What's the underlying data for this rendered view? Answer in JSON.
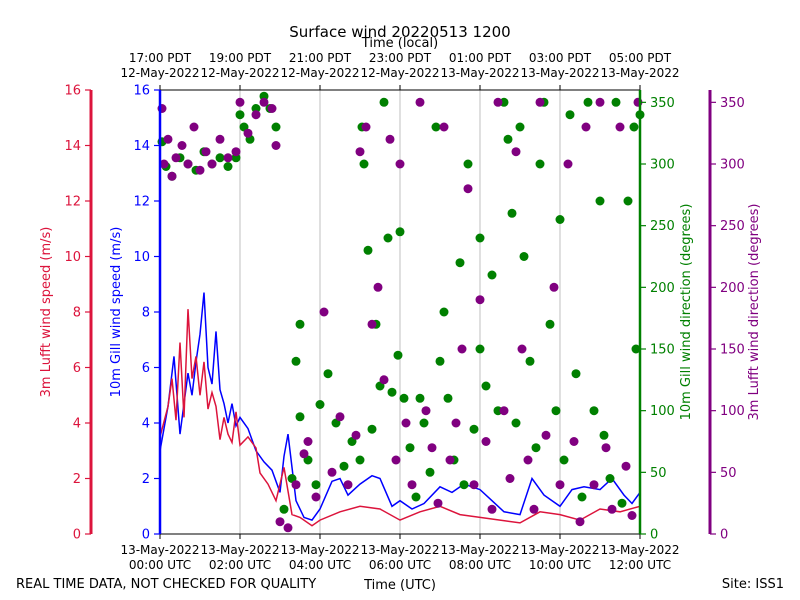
{
  "chart_data": {
    "type": "scatter",
    "title": "Surface wind 20220513 1200",
    "top_axis_label": "Time (local)",
    "xlabel": "Time (UTC)",
    "footer_left": "REAL TIME DATA, NOT CHECKED FOR QUALITY",
    "footer_right": "Site: ISS1",
    "x_hours_range": [
      0,
      12
    ],
    "x_ticks_hours": [
      0,
      2,
      4,
      6,
      8,
      10,
      12
    ],
    "x_tick_labels_utc": [
      [
        "13-May-2022",
        "00:00 UTC"
      ],
      [
        "13-May-2022",
        "02:00 UTC"
      ],
      [
        "13-May-2022",
        "04:00 UTC"
      ],
      [
        "13-May-2022",
        "06:00 UTC"
      ],
      [
        "13-May-2022",
        "08:00 UTC"
      ],
      [
        "13-May-2022",
        "10:00 UTC"
      ],
      [
        "13-May-2022",
        "12:00 UTC"
      ]
    ],
    "x_tick_labels_local": [
      [
        "17:00 PDT",
        "12-May-2022"
      ],
      [
        "19:00 PDT",
        "12-May-2022"
      ],
      [
        "21:00 PDT",
        "12-May-2022"
      ],
      [
        "23:00 PDT",
        "12-May-2022"
      ],
      [
        "01:00 PDT",
        "13-May-2022"
      ],
      [
        "03:00 PDT",
        "13-May-2022"
      ],
      [
        "05:00 PDT",
        "13-May-2022"
      ]
    ],
    "axes": {
      "lufft_speed": {
        "label": "3m Lufft wind speed (m/s)",
        "ylim": [
          0,
          16
        ],
        "ticks": [
          0,
          2,
          4,
          6,
          8,
          10,
          12,
          14,
          16
        ],
        "color": "#dc143c"
      },
      "gill_speed": {
        "label": "10m Gill wind speed (m/s)",
        "ylim": [
          0,
          16
        ],
        "ticks": [
          0,
          2,
          4,
          6,
          8,
          10,
          12,
          14,
          16
        ],
        "color": "#0000ff"
      },
      "gill_dir": {
        "label": "10m Gill wind direction (degrees)",
        "ylim": [
          0,
          360
        ],
        "ticks": [
          0,
          50,
          100,
          150,
          200,
          250,
          300,
          350
        ],
        "color": "#008000"
      },
      "lufft_dir": {
        "label": "3m Lufft wind direction (degrees)",
        "ylim": [
          0,
          360
        ],
        "ticks": [
          0,
          50,
          100,
          150,
          200,
          250,
          300,
          350
        ],
        "color": "#800080"
      }
    },
    "series": [
      {
        "name": "10m Gill wind speed",
        "kind": "line",
        "axis": "gill_speed",
        "color": "#0000ff",
        "points": [
          [
            0,
            3.0
          ],
          [
            0.2,
            4.6
          ],
          [
            0.35,
            6.4
          ],
          [
            0.5,
            3.6
          ],
          [
            0.7,
            5.8
          ],
          [
            0.8,
            5.0
          ],
          [
            0.9,
            6.2
          ],
          [
            1.0,
            7.2
          ],
          [
            1.1,
            8.7
          ],
          [
            1.2,
            6.0
          ],
          [
            1.3,
            5.4
          ],
          [
            1.4,
            7.3
          ],
          [
            1.5,
            5.2
          ],
          [
            1.6,
            4.7
          ],
          [
            1.7,
            4.0
          ],
          [
            1.8,
            4.7
          ],
          [
            1.9,
            3.9
          ],
          [
            2.0,
            4.2
          ],
          [
            2.2,
            3.8
          ],
          [
            2.4,
            3.0
          ],
          [
            2.6,
            2.6
          ],
          [
            2.8,
            2.3
          ],
          [
            3.0,
            1.5
          ],
          [
            3.1,
            2.8
          ],
          [
            3.2,
            3.6
          ],
          [
            3.4,
            1.2
          ],
          [
            3.6,
            0.6
          ],
          [
            3.8,
            0.5
          ],
          [
            4.0,
            0.9
          ],
          [
            4.3,
            1.9
          ],
          [
            4.5,
            2.0
          ],
          [
            4.7,
            1.4
          ],
          [
            5.0,
            1.8
          ],
          [
            5.3,
            2.1
          ],
          [
            5.5,
            2.0
          ],
          [
            5.8,
            1.0
          ],
          [
            6.0,
            1.2
          ],
          [
            6.3,
            0.9
          ],
          [
            6.6,
            1.1
          ],
          [
            7.0,
            1.7
          ],
          [
            7.3,
            1.5
          ],
          [
            7.6,
            1.8
          ],
          [
            8.0,
            1.6
          ],
          [
            8.3,
            1.2
          ],
          [
            8.6,
            0.8
          ],
          [
            9.0,
            0.7
          ],
          [
            9.3,
            2.0
          ],
          [
            9.6,
            1.4
          ],
          [
            10.0,
            1.0
          ],
          [
            10.3,
            1.6
          ],
          [
            10.6,
            1.7
          ],
          [
            11.0,
            1.6
          ],
          [
            11.3,
            2.0
          ],
          [
            11.6,
            1.4
          ],
          [
            11.8,
            1.1
          ],
          [
            12.0,
            1.5
          ]
        ]
      },
      {
        "name": "3m Lufft wind speed",
        "kind": "line",
        "axis": "lufft_speed",
        "color": "#dc143c",
        "points": [
          [
            0,
            3.5
          ],
          [
            0.2,
            4.6
          ],
          [
            0.3,
            5.6
          ],
          [
            0.4,
            4.1
          ],
          [
            0.5,
            6.9
          ],
          [
            0.6,
            4.2
          ],
          [
            0.7,
            8.1
          ],
          [
            0.8,
            5.6
          ],
          [
            0.9,
            6.4
          ],
          [
            1.0,
            5.0
          ],
          [
            1.1,
            6.2
          ],
          [
            1.2,
            4.5
          ],
          [
            1.3,
            5.1
          ],
          [
            1.4,
            4.6
          ],
          [
            1.5,
            3.4
          ],
          [
            1.6,
            4.2
          ],
          [
            1.7,
            3.6
          ],
          [
            1.8,
            3.3
          ],
          [
            1.9,
            4.4
          ],
          [
            2.0,
            3.2
          ],
          [
            2.2,
            3.5
          ],
          [
            2.4,
            3.1
          ],
          [
            2.5,
            2.2
          ],
          [
            2.7,
            1.8
          ],
          [
            2.9,
            1.2
          ],
          [
            3.1,
            2.4
          ],
          [
            3.3,
            0.7
          ],
          [
            3.5,
            0.6
          ],
          [
            3.8,
            0.3
          ],
          [
            4.0,
            0.5
          ],
          [
            4.5,
            0.8
          ],
          [
            5.0,
            1.0
          ],
          [
            5.5,
            0.9
          ],
          [
            6.0,
            0.5
          ],
          [
            6.5,
            0.8
          ],
          [
            7.0,
            1.0
          ],
          [
            7.5,
            0.7
          ],
          [
            8.0,
            0.6
          ],
          [
            8.5,
            0.5
          ],
          [
            9.0,
            0.4
          ],
          [
            9.5,
            0.8
          ],
          [
            10.0,
            0.7
          ],
          [
            10.5,
            0.5
          ],
          [
            11.0,
            0.9
          ],
          [
            11.5,
            0.8
          ],
          [
            12.0,
            1.0
          ]
        ]
      },
      {
        "name": "10m Gill wind direction",
        "kind": "scatter",
        "axis": "gill_dir",
        "color": "#008000",
        "points": [
          [
            0.05,
            318
          ],
          [
            0.15,
            298
          ],
          [
            0.3,
            290
          ],
          [
            0.5,
            305
          ],
          [
            0.7,
            300
          ],
          [
            0.9,
            295
          ],
          [
            1.1,
            310
          ],
          [
            1.3,
            300
          ],
          [
            1.5,
            305
          ],
          [
            1.7,
            298
          ],
          [
            1.9,
            305
          ],
          [
            2.0,
            340
          ],
          [
            2.1,
            330
          ],
          [
            2.25,
            320
          ],
          [
            2.4,
            345
          ],
          [
            2.6,
            355
          ],
          [
            2.75,
            345
          ],
          [
            2.9,
            330
          ],
          [
            3.1,
            20
          ],
          [
            3.3,
            45
          ],
          [
            3.4,
            140
          ],
          [
            3.5,
            170
          ],
          [
            3.5,
            95
          ],
          [
            3.7,
            60
          ],
          [
            3.9,
            40
          ],
          [
            4.0,
            105
          ],
          [
            4.2,
            130
          ],
          [
            4.4,
            90
          ],
          [
            4.6,
            55
          ],
          [
            4.8,
            75
          ],
          [
            5.0,
            60
          ],
          [
            5.05,
            330
          ],
          [
            5.1,
            300
          ],
          [
            5.2,
            230
          ],
          [
            5.3,
            85
          ],
          [
            5.4,
            170
          ],
          [
            5.5,
            120
          ],
          [
            5.6,
            350
          ],
          [
            5.7,
            240
          ],
          [
            5.8,
            115
          ],
          [
            5.95,
            145
          ],
          [
            6.0,
            245
          ],
          [
            6.1,
            110
          ],
          [
            6.25,
            70
          ],
          [
            6.4,
            30
          ],
          [
            6.5,
            110
          ],
          [
            6.6,
            90
          ],
          [
            6.75,
            50
          ],
          [
            6.9,
            330
          ],
          [
            7.0,
            140
          ],
          [
            7.1,
            180
          ],
          [
            7.2,
            110
          ],
          [
            7.35,
            60
          ],
          [
            7.5,
            220
          ],
          [
            7.6,
            40
          ],
          [
            7.7,
            300
          ],
          [
            7.85,
            85
          ],
          [
            8.0,
            150
          ],
          [
            8.0,
            240
          ],
          [
            8.15,
            120
          ],
          [
            8.3,
            210
          ],
          [
            8.45,
            100
          ],
          [
            8.6,
            350
          ],
          [
            8.7,
            320
          ],
          [
            8.8,
            260
          ],
          [
            8.9,
            90
          ],
          [
            9.0,
            330
          ],
          [
            9.1,
            225
          ],
          [
            9.25,
            140
          ],
          [
            9.4,
            70
          ],
          [
            9.5,
            300
          ],
          [
            9.6,
            350
          ],
          [
            9.75,
            170
          ],
          [
            9.9,
            100
          ],
          [
            10.0,
            255
          ],
          [
            10.1,
            60
          ],
          [
            10.25,
            340
          ],
          [
            10.4,
            130
          ],
          [
            10.55,
            30
          ],
          [
            10.7,
            350
          ],
          [
            10.85,
            100
          ],
          [
            11.0,
            270
          ],
          [
            11.1,
            80
          ],
          [
            11.25,
            45
          ],
          [
            11.4,
            350
          ],
          [
            11.55,
            25
          ],
          [
            11.7,
            270
          ],
          [
            11.85,
            330
          ],
          [
            11.9,
            150
          ],
          [
            12.0,
            340
          ]
        ]
      },
      {
        "name": "3m Lufft wind direction",
        "kind": "scatter",
        "axis": "lufft_dir",
        "color": "#800080",
        "points": [
          [
            0.05,
            345
          ],
          [
            0.1,
            300
          ],
          [
            0.2,
            320
          ],
          [
            0.3,
            290
          ],
          [
            0.4,
            305
          ],
          [
            0.55,
            315
          ],
          [
            0.7,
            300
          ],
          [
            0.85,
            330
          ],
          [
            1.0,
            295
          ],
          [
            1.15,
            310
          ],
          [
            1.3,
            300
          ],
          [
            1.5,
            320
          ],
          [
            1.7,
            305
          ],
          [
            1.9,
            310
          ],
          [
            2.0,
            350
          ],
          [
            2.2,
            325
          ],
          [
            2.4,
            340
          ],
          [
            2.6,
            350
          ],
          [
            2.8,
            345
          ],
          [
            2.9,
            315
          ],
          [
            3.0,
            10
          ],
          [
            3.2,
            5
          ],
          [
            3.4,
            40
          ],
          [
            3.6,
            65
          ],
          [
            3.7,
            75
          ],
          [
            3.9,
            30
          ],
          [
            4.1,
            180
          ],
          [
            4.3,
            50
          ],
          [
            4.5,
            95
          ],
          [
            4.7,
            40
          ],
          [
            4.9,
            80
          ],
          [
            5.0,
            310
          ],
          [
            5.15,
            330
          ],
          [
            5.3,
            170
          ],
          [
            5.45,
            200
          ],
          [
            5.6,
            125
          ],
          [
            5.75,
            320
          ],
          [
            5.9,
            60
          ],
          [
            6.0,
            300
          ],
          [
            6.15,
            90
          ],
          [
            6.3,
            40
          ],
          [
            6.5,
            350
          ],
          [
            6.65,
            100
          ],
          [
            6.8,
            70
          ],
          [
            6.95,
            25
          ],
          [
            7.1,
            330
          ],
          [
            7.25,
            60
          ],
          [
            7.4,
            90
          ],
          [
            7.55,
            150
          ],
          [
            7.7,
            280
          ],
          [
            7.85,
            40
          ],
          [
            8.0,
            190
          ],
          [
            8.15,
            75
          ],
          [
            8.3,
            20
          ],
          [
            8.45,
            350
          ],
          [
            8.6,
            100
          ],
          [
            8.75,
            45
          ],
          [
            8.9,
            310
          ],
          [
            9.05,
            150
          ],
          [
            9.2,
            60
          ],
          [
            9.35,
            20
          ],
          [
            9.5,
            350
          ],
          [
            9.65,
            80
          ],
          [
            9.85,
            200
          ],
          [
            10.0,
            40
          ],
          [
            10.2,
            300
          ],
          [
            10.35,
            75
          ],
          [
            10.5,
            10
          ],
          [
            10.65,
            330
          ],
          [
            10.85,
            40
          ],
          [
            11.0,
            350
          ],
          [
            11.15,
            70
          ],
          [
            11.3,
            20
          ],
          [
            11.5,
            330
          ],
          [
            11.65,
            55
          ],
          [
            11.8,
            15
          ],
          [
            11.95,
            350
          ]
        ]
      }
    ]
  }
}
